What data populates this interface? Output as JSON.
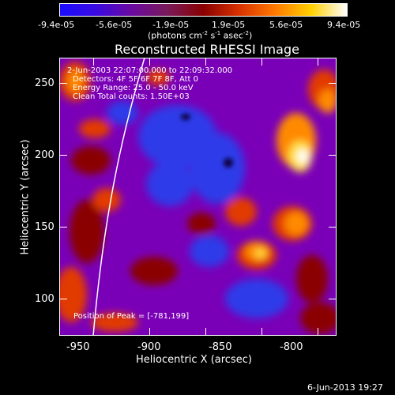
{
  "colorbar": {
    "ticks": [
      "-9.4e-05",
      "-5.6e-05",
      "-1.9e-05",
      "1.9e-05",
      "5.6e-05",
      "9.4e-05"
    ],
    "units_label": "(photons cm",
    "units_exp1": "-2",
    "units_mid": " s",
    "units_exp2": "-1",
    "units_end": " asec",
    "units_exp3": "-2",
    "units_close": ")",
    "gradient_colors": [
      "#1a0dff",
      "#3a0ae0",
      "#6a0aa0",
      "#7a1a5a",
      "#8a0000",
      "#d83200",
      "#ff7a00",
      "#ffd000",
      "#ffffff"
    ]
  },
  "plot": {
    "title": "Reconstructed RHESSI Image",
    "annotation_time": "2-Jun-2003 22:07:00.000 to 22:09:32.000",
    "annotation_detectors": "Detectors: 4F 5F 6F 7F 8F, Att 0",
    "annotation_energy": "Energy Range: 25.0 - 50.0 keV",
    "annotation_clean": "Clean    Total counts: 1.50E+03",
    "peak_position": "Position of Peak = [-781,199]",
    "xlabel": "Heliocentric X (arcsec)",
    "ylabel": "Heliocentric Y (arcsec)",
    "x_ticks": [
      "-950",
      "-900",
      "-850",
      "-800"
    ],
    "y_ticks": [
      "250",
      "200",
      "150",
      "100"
    ],
    "colors": {
      "background": "#7a00b8",
      "blue": "#2f3ae8",
      "dark_blue": "#0a0040",
      "dark_red": "#8a0000",
      "red": "#e23a00",
      "orange": "#ff8a00",
      "yellow": "#ffe040",
      "white": "#ffffff"
    }
  },
  "footer": {
    "timestamp": "6-Jun-2013 19:27"
  }
}
